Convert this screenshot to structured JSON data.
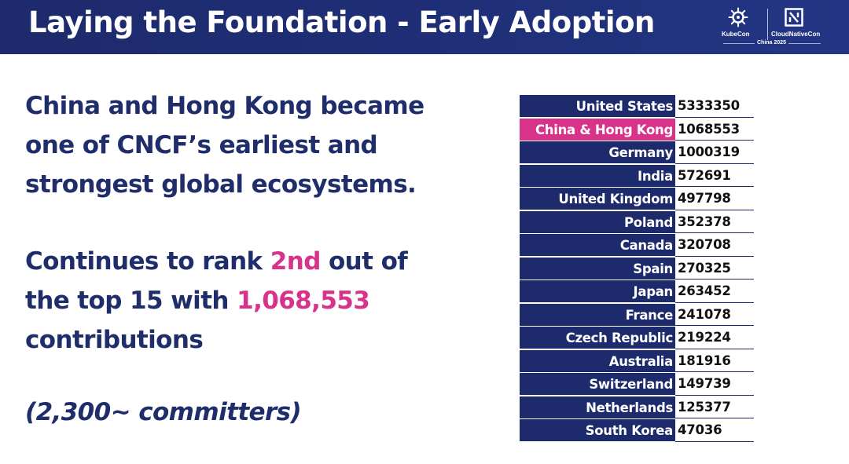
{
  "header": {
    "title": "Laying the Foundation - Early Adoption",
    "logo": {
      "kubecon": "KubeCon",
      "cloudnativecon": "CloudNativeCon",
      "edition": "China 2025",
      "left_icon": "kubernetes-helm-icon",
      "right_icon": "cncf-icon"
    }
  },
  "body": {
    "paragraph1": {
      "line1": "China and Hong Kong became",
      "line2": "one of CNCF’s earliest and",
      "line3": "strongest global ecosystems."
    },
    "paragraph2": {
      "part1": "Continues to rank ",
      "rank": "2nd",
      "part2": " out of",
      "part3": "the top 15 with ",
      "contributions": "1,068,553",
      "part4": "contributions"
    },
    "committers": "(2,300~ committers)"
  },
  "table": {
    "rows": [
      {
        "country": "United States",
        "value": "5333350"
      },
      {
        "country": "China & Hong Kong",
        "value": "1068553"
      },
      {
        "country": "Germany",
        "value": "1000319"
      },
      {
        "country": "India",
        "value": "572691"
      },
      {
        "country": "United Kingdom",
        "value": "497798"
      },
      {
        "country": "Poland",
        "value": "352378"
      },
      {
        "country": "Canada",
        "value": "320708"
      },
      {
        "country": "Spain",
        "value": "270325"
      },
      {
        "country": "Japan",
        "value": "263452"
      },
      {
        "country": "France",
        "value": "241078"
      },
      {
        "country": "Czech Republic",
        "value": "219224"
      },
      {
        "country": "Australia",
        "value": "181916"
      },
      {
        "country": "Switzerland",
        "value": "149739"
      },
      {
        "country": "Netherlands",
        "value": "125377"
      },
      {
        "country": "South Korea",
        "value": "47036"
      }
    ],
    "highlighted_row": 1
  },
  "colors": {
    "navy": "#1d2a6b",
    "text_navy": "#1f2e6a",
    "accent_pink": "#d8338a"
  }
}
